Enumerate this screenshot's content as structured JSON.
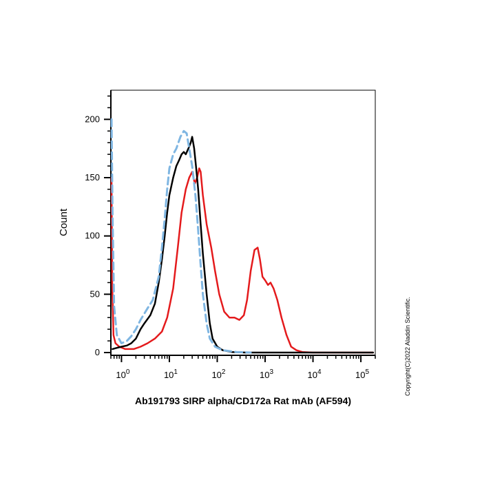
{
  "chart_data": {
    "type": "line",
    "title": "",
    "xlabel": "Ab191793 SIRP alpha/CD172a Rat mAb (AF594)",
    "ylabel": "Count",
    "x_scale": "log",
    "xlim": [
      0.6,
      200000
    ],
    "ylim": [
      0,
      225
    ],
    "x_ticks": [
      {
        "value": 1,
        "base": "10",
        "exp": "0"
      },
      {
        "value": 10,
        "base": "10",
        "exp": "1"
      },
      {
        "value": 100,
        "base": "10",
        "exp": "2"
      },
      {
        "value": 1000,
        "base": "10",
        "exp": "3"
      },
      {
        "value": 10000,
        "base": "10",
        "exp": "4"
      },
      {
        "value": 100000,
        "base": "10",
        "exp": "5"
      }
    ],
    "y_ticks": [
      0,
      50,
      100,
      150,
      200
    ],
    "grid": false,
    "series": [
      {
        "color": "#e41a1c",
        "dash": false,
        "points": [
          [
            0.62,
            150
          ],
          [
            0.64,
            60
          ],
          [
            0.68,
            15
          ],
          [
            0.75,
            8
          ],
          [
            0.9,
            5
          ],
          [
            1.2,
            3
          ],
          [
            1.8,
            3
          ],
          [
            2.5,
            5
          ],
          [
            3.5,
            8
          ],
          [
            5,
            12
          ],
          [
            7,
            18
          ],
          [
            9,
            30
          ],
          [
            12,
            55
          ],
          [
            15,
            90
          ],
          [
            18,
            120
          ],
          [
            22,
            140
          ],
          [
            26,
            150
          ],
          [
            30,
            155
          ],
          [
            34,
            145
          ],
          [
            38,
            150
          ],
          [
            42,
            158
          ],
          [
            45,
            155
          ],
          [
            50,
            135
          ],
          [
            60,
            110
          ],
          [
            75,
            90
          ],
          [
            90,
            70
          ],
          [
            110,
            50
          ],
          [
            140,
            35
          ],
          [
            180,
            30
          ],
          [
            230,
            30
          ],
          [
            290,
            28
          ],
          [
            360,
            32
          ],
          [
            420,
            45
          ],
          [
            500,
            70
          ],
          [
            600,
            88
          ],
          [
            700,
            90
          ],
          [
            780,
            80
          ],
          [
            880,
            65
          ],
          [
            1000,
            62
          ],
          [
            1150,
            58
          ],
          [
            1300,
            60
          ],
          [
            1500,
            55
          ],
          [
            1800,
            45
          ],
          [
            2200,
            30
          ],
          [
            2800,
            15
          ],
          [
            3500,
            5
          ],
          [
            4500,
            2
          ],
          [
            6000,
            0.5
          ],
          [
            10000,
            0
          ],
          [
            100000,
            0
          ],
          [
            180000,
            0
          ]
        ]
      },
      {
        "color": "#000000",
        "dash": false,
        "points": [
          [
            0.65,
            3
          ],
          [
            0.8,
            4
          ],
          [
            1,
            5
          ],
          [
            1.3,
            6
          ],
          [
            1.6,
            8
          ],
          [
            2,
            12
          ],
          [
            2.5,
            20
          ],
          [
            3,
            25
          ],
          [
            4,
            32
          ],
          [
            5,
            42
          ],
          [
            6,
            60
          ],
          [
            7,
            80
          ],
          [
            8,
            100
          ],
          [
            9,
            120
          ],
          [
            10,
            135
          ],
          [
            12,
            150
          ],
          [
            14,
            160
          ],
          [
            16,
            165
          ],
          [
            18,
            170
          ],
          [
            20,
            172
          ],
          [
            22,
            170
          ],
          [
            25,
            175
          ],
          [
            28,
            180
          ],
          [
            30,
            185
          ],
          [
            33,
            175
          ],
          [
            36,
            160
          ],
          [
            40,
            140
          ],
          [
            45,
            110
          ],
          [
            50,
            85
          ],
          [
            60,
            50
          ],
          [
            70,
            25
          ],
          [
            80,
            12
          ],
          [
            100,
            5
          ],
          [
            130,
            2
          ],
          [
            200,
            0.5
          ],
          [
            400,
            0
          ],
          [
            2000,
            0
          ],
          [
            10000,
            0
          ],
          [
            180000,
            0
          ]
        ]
      },
      {
        "color": "#7fb6e2",
        "dash": true,
        "points": [
          [
            0.62,
            200
          ],
          [
            0.65,
            120
          ],
          [
            0.7,
            40
          ],
          [
            0.8,
            15
          ],
          [
            1,
            8
          ],
          [
            1.3,
            10
          ],
          [
            1.6,
            14
          ],
          [
            2,
            20
          ],
          [
            2.5,
            28
          ],
          [
            3.5,
            38
          ],
          [
            4.5,
            45
          ],
          [
            6,
            65
          ],
          [
            7,
            90
          ],
          [
            8,
            115
          ],
          [
            9,
            140
          ],
          [
            10,
            158
          ],
          [
            12,
            170
          ],
          [
            14,
            175
          ],
          [
            17,
            185
          ],
          [
            20,
            190
          ],
          [
            23,
            188
          ],
          [
            26,
            175
          ],
          [
            30,
            160
          ],
          [
            35,
            135
          ],
          [
            40,
            105
          ],
          [
            45,
            75
          ],
          [
            50,
            50
          ],
          [
            60,
            25
          ],
          [
            70,
            12
          ],
          [
            90,
            5
          ],
          [
            130,
            2
          ],
          [
            250,
            0.5
          ],
          [
            500,
            0
          ]
        ]
      }
    ]
  },
  "copyright": "Copyright(C)2022 Aladdin Scientific."
}
